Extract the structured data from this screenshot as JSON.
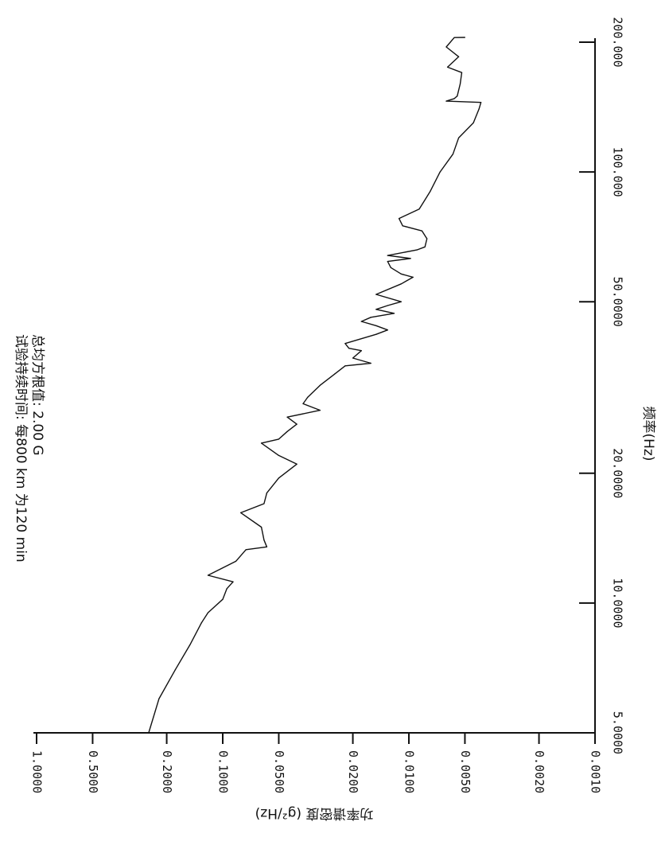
{
  "chart_data": {
    "type": "line",
    "xscale": "log",
    "yscale": "log",
    "xlim": [
      5,
      200
    ],
    "ylim": [
      0.001,
      1
    ],
    "x_ticks": [
      {
        "value": 5,
        "label": "5.0000"
      },
      {
        "value": 10,
        "label": "10.0000"
      },
      {
        "value": 20,
        "label": "20.0000"
      },
      {
        "value": 50,
        "label": "50.0000"
      },
      {
        "value": 100,
        "label": "100.000"
      },
      {
        "value": 200,
        "label": "200.000"
      }
    ],
    "y_ticks": [
      {
        "value": 1.0,
        "label": "1.0000"
      },
      {
        "value": 0.5,
        "label": "0.5000"
      },
      {
        "value": 0.2,
        "label": "0.2000"
      },
      {
        "value": 0.1,
        "label": "0.1000"
      },
      {
        "value": 0.05,
        "label": "0.0500"
      },
      {
        "value": 0.02,
        "label": "0.0200"
      },
      {
        "value": 0.01,
        "label": "0.0100"
      },
      {
        "value": 0.005,
        "label": "0.0050"
      },
      {
        "value": 0.002,
        "label": "0.0020"
      },
      {
        "value": 0.001,
        "label": "0.0010"
      }
    ],
    "xlabel": "频率(Hz)",
    "ylabel": "功率谱密度 (g²/Hz)",
    "annotations": [
      "试验持续时间: 每800 km 为120 min",
      "总均方根值: 2.00 G"
    ],
    "grid": false,
    "series": [
      {
        "x": [
          5.0,
          6.0,
          7.0,
          8.0,
          9.0,
          9.5,
          10.2,
          10.8,
          11.2,
          11.6,
          12.5,
          13.3,
          13.5,
          14.0,
          15.0,
          16.2,
          17.0,
          18.0,
          19.5,
          21.0,
          22.0,
          23.5,
          24.0,
          25.0,
          26.0,
          27.0,
          28.0,
          29.0,
          30.0,
          32.0,
          34.0,
          35.5,
          36.0,
          37.0,
          38.5,
          39.0,
          40.0,
          42.0,
          43.0,
          44.0,
          45.0,
          46.0,
          47.0,
          48.0,
          49.0,
          50.0,
          52.0,
          55.0,
          57.0,
          58.0,
          60.0,
          62.0,
          63.0,
          64.0,
          66.0,
          67.0,
          70.0,
          73.0,
          75.0,
          78.0,
          82.0,
          90.0,
          100.0,
          110.0,
          120.0,
          130.0,
          140.0,
          145.0,
          146.0,
          148.0,
          150.0,
          160.0,
          170.0,
          175.0,
          185.0,
          195.0,
          205.0,
          215.0
        ],
        "y": [
          0.25,
          0.22,
          0.18,
          0.15,
          0.13,
          0.12,
          0.1,
          0.095,
          0.088,
          0.12,
          0.085,
          0.075,
          0.058,
          0.06,
          0.062,
          0.08,
          0.06,
          0.058,
          0.05,
          0.04,
          0.05,
          0.062,
          0.05,
          0.045,
          0.04,
          0.045,
          0.03,
          0.037,
          0.035,
          0.03,
          0.025,
          0.022,
          0.016,
          0.02,
          0.018,
          0.021,
          0.022,
          0.015,
          0.013,
          0.015,
          0.018,
          0.016,
          0.012,
          0.015,
          0.013,
          0.011,
          0.015,
          0.011,
          0.0095,
          0.011,
          0.0125,
          0.013,
          0.0098,
          0.013,
          0.009,
          0.0082,
          0.008,
          0.0085,
          0.0108,
          0.0113,
          0.0088,
          0.0077,
          0.0068,
          0.0058,
          0.0054,
          0.0045,
          0.0042,
          0.0041,
          0.0063,
          0.0057,
          0.0055,
          0.0053,
          0.0052,
          0.0062,
          0.0054,
          0.0063,
          0.0057,
          0.005
        ]
      }
    ]
  }
}
